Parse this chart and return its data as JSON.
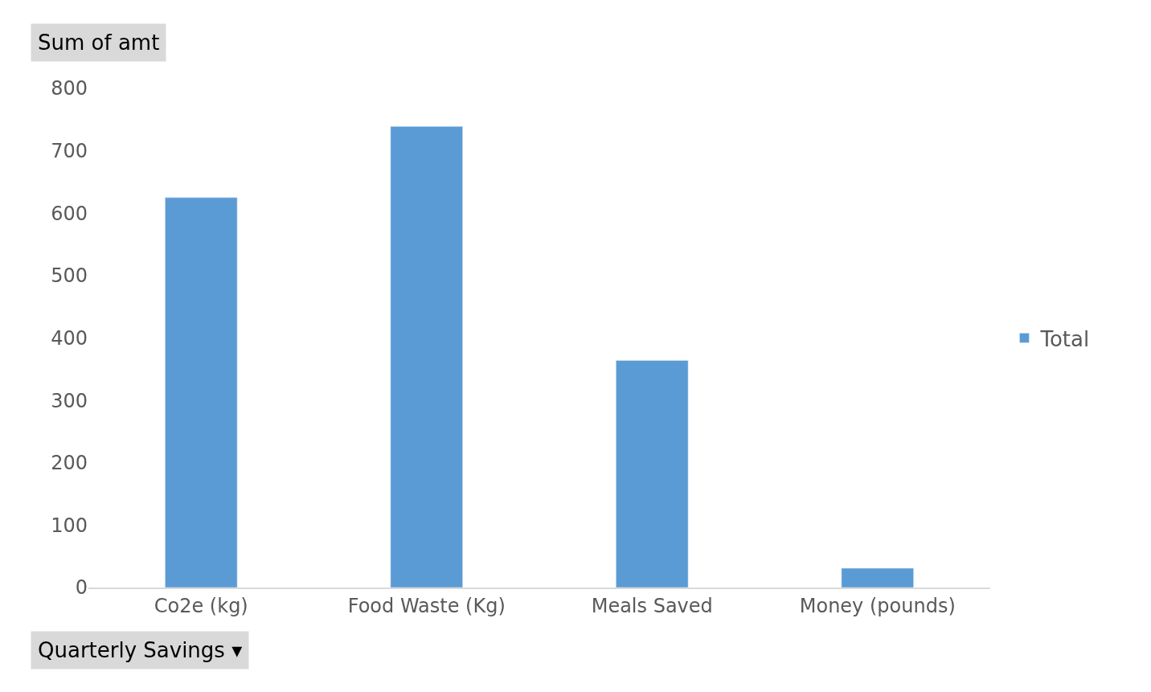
{
  "chart_data": {
    "type": "bar",
    "categories": [
      "Co2e (kg)",
      "Food Waste (Kg)",
      "Meals Saved",
      "Money (pounds)"
    ],
    "series": [
      {
        "name": "Total",
        "color": "#5b9bd5",
        "values": [
          625,
          739,
          364,
          31
        ]
      }
    ],
    "ylim": [
      0,
      800
    ],
    "yticks": [
      0,
      100,
      200,
      300,
      400,
      500,
      600,
      700,
      800
    ],
    "legend": "right",
    "annotations": [
      "Sum of amt",
      "Quarterly Savings ▾"
    ]
  }
}
